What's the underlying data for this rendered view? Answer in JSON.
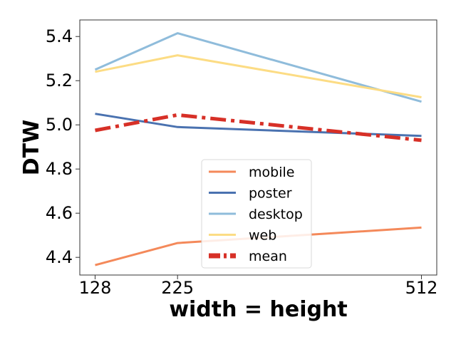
{
  "chart_data": {
    "type": "line",
    "title": "",
    "xlabel": "width = height",
    "ylabel": "DTW",
    "x": [
      128,
      225,
      512
    ],
    "xlim": [
      110,
      530
    ],
    "ylim": [
      4.32,
      5.475
    ],
    "yticks": [
      4.4,
      4.6,
      4.8,
      5.0,
      5.2,
      5.4
    ],
    "ytick_labels": [
      "4.4",
      "4.6",
      "4.8",
      "5.0",
      "5.2",
      "5.4"
    ],
    "xticks": [
      128,
      225,
      512
    ],
    "xtick_labels": [
      "128",
      "225",
      "512"
    ],
    "grid": false,
    "legend_position": "lower-center",
    "series": [
      {
        "name": "mobile",
        "values": [
          4.365,
          4.465,
          4.535
        ],
        "color": "#f4895a",
        "style": "solid"
      },
      {
        "name": "poster",
        "values": [
          5.05,
          4.99,
          4.95
        ],
        "color": "#4a72b0",
        "style": "solid"
      },
      {
        "name": "desktop",
        "values": [
          5.25,
          5.415,
          5.105
        ],
        "color": "#8fbcdb",
        "style": "solid"
      },
      {
        "name": "web",
        "values": [
          5.24,
          5.315,
          5.125
        ],
        "color": "#fcdc84",
        "style": "solid"
      },
      {
        "name": "mean",
        "values": [
          4.975,
          5.045,
          4.93
        ],
        "color": "#d73027",
        "style": "dashdot"
      }
    ]
  }
}
